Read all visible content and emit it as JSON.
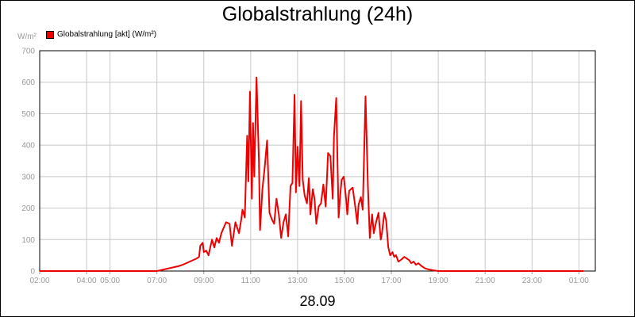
{
  "chart_data": {
    "type": "line",
    "title": "Globalstrahlung (24h)",
    "unit_label": "W/m²",
    "legend": "Globalstrahlung [akt] (W/m²)",
    "date_label": "28.09",
    "series_color": "#ee0000",
    "ylim": [
      0,
      700
    ],
    "yticks": [
      "0",
      "100",
      "200",
      "300",
      "400",
      "500",
      "600",
      "700"
    ],
    "xlim": [
      2,
      25.7
    ],
    "xticks": [
      {
        "label": "02:00",
        "x": 2
      },
      {
        "label": "04:00",
        "x": 4
      },
      {
        "label": "05:00",
        "x": 5
      },
      {
        "label": "07:00",
        "x": 7
      },
      {
        "label": "09:00",
        "x": 9
      },
      {
        "label": "11:00",
        "x": 11
      },
      {
        "label": "13:00",
        "x": 13
      },
      {
        "label": "15:00",
        "x": 15
      },
      {
        "label": "17:00",
        "x": 17
      },
      {
        "label": "19:00",
        "x": 19
      },
      {
        "label": "21:00",
        "x": 21
      },
      {
        "label": "23:00",
        "x": 23
      },
      {
        "label": "01:00",
        "x": 25
      }
    ],
    "grid": true,
    "series": [
      {
        "values": [
          [
            2.0,
            0
          ],
          [
            7.0,
            0
          ],
          [
            7.3,
            5
          ],
          [
            7.6,
            10
          ],
          [
            7.9,
            15
          ],
          [
            8.1,
            20
          ],
          [
            8.4,
            30
          ],
          [
            8.7,
            40
          ],
          [
            8.8,
            45
          ],
          [
            8.85,
            80
          ],
          [
            8.95,
            90
          ],
          [
            9.0,
            60
          ],
          [
            9.1,
            65
          ],
          [
            9.2,
            50
          ],
          [
            9.35,
            100
          ],
          [
            9.45,
            75
          ],
          [
            9.55,
            105
          ],
          [
            9.65,
            90
          ],
          [
            9.75,
            120
          ],
          [
            9.95,
            155
          ],
          [
            10.1,
            150
          ],
          [
            10.2,
            80
          ],
          [
            10.35,
            155
          ],
          [
            10.5,
            120
          ],
          [
            10.6,
            165
          ],
          [
            10.65,
            195
          ],
          [
            10.75,
            170
          ],
          [
            10.85,
            430
          ],
          [
            10.9,
            285
          ],
          [
            10.97,
            570
          ],
          [
            11.05,
            230
          ],
          [
            11.1,
            470
          ],
          [
            11.15,
            300
          ],
          [
            11.25,
            615
          ],
          [
            11.35,
            350
          ],
          [
            11.4,
            130
          ],
          [
            11.5,
            260
          ],
          [
            11.6,
            330
          ],
          [
            11.7,
            415
          ],
          [
            11.8,
            185
          ],
          [
            11.9,
            165
          ],
          [
            12.0,
            150
          ],
          [
            12.1,
            230
          ],
          [
            12.2,
            180
          ],
          [
            12.3,
            105
          ],
          [
            12.4,
            155
          ],
          [
            12.5,
            180
          ],
          [
            12.6,
            110
          ],
          [
            12.7,
            270
          ],
          [
            12.78,
            280
          ],
          [
            12.87,
            560
          ],
          [
            12.93,
            250
          ],
          [
            13.0,
            395
          ],
          [
            13.08,
            270
          ],
          [
            13.15,
            540
          ],
          [
            13.22,
            290
          ],
          [
            13.3,
            240
          ],
          [
            13.4,
            215
          ],
          [
            13.48,
            295
          ],
          [
            13.55,
            180
          ],
          [
            13.65,
            260
          ],
          [
            13.72,
            230
          ],
          [
            13.8,
            150
          ],
          [
            13.9,
            205
          ],
          [
            14.0,
            215
          ],
          [
            14.1,
            275
          ],
          [
            14.2,
            205
          ],
          [
            14.3,
            375
          ],
          [
            14.4,
            365
          ],
          [
            14.5,
            230
          ],
          [
            14.55,
            425
          ],
          [
            14.65,
            550
          ],
          [
            14.75,
            170
          ],
          [
            14.82,
            240
          ],
          [
            14.88,
            290
          ],
          [
            14.97,
            300
          ],
          [
            15.07,
            230
          ],
          [
            15.12,
            180
          ],
          [
            15.2,
            255
          ],
          [
            15.35,
            265
          ],
          [
            15.45,
            210
          ],
          [
            15.55,
            150
          ],
          [
            15.6,
            210
          ],
          [
            15.7,
            235
          ],
          [
            15.78,
            195
          ],
          [
            15.9,
            555
          ],
          [
            16.0,
            270
          ],
          [
            16.08,
            105
          ],
          [
            16.18,
            180
          ],
          [
            16.25,
            120
          ],
          [
            16.35,
            155
          ],
          [
            16.45,
            185
          ],
          [
            16.55,
            100
          ],
          [
            16.6,
            120
          ],
          [
            16.7,
            185
          ],
          [
            16.78,
            160
          ],
          [
            16.87,
            75
          ],
          [
            16.95,
            50
          ],
          [
            17.05,
            60
          ],
          [
            17.12,
            45
          ],
          [
            17.2,
            50
          ],
          [
            17.3,
            30
          ],
          [
            17.4,
            35
          ],
          [
            17.55,
            45
          ],
          [
            17.65,
            40
          ],
          [
            17.75,
            35
          ],
          [
            17.85,
            25
          ],
          [
            17.95,
            30
          ],
          [
            18.05,
            20
          ],
          [
            18.15,
            25
          ],
          [
            18.3,
            15
          ],
          [
            18.45,
            8
          ],
          [
            18.6,
            5
          ],
          [
            18.75,
            3
          ],
          [
            18.9,
            1
          ],
          [
            19.0,
            0
          ],
          [
            25.2,
            0
          ]
        ]
      }
    ]
  }
}
